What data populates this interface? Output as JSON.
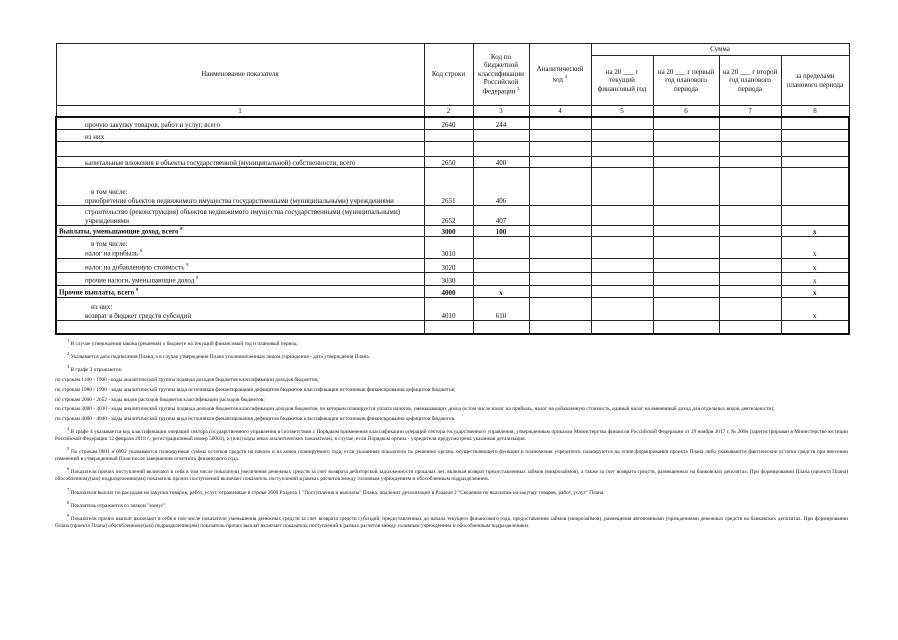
{
  "table": {
    "header": {
      "name": "Наименование показателя",
      "code": "Код строки",
      "kbk": "Код по бюджетной классификации Российской Федерации",
      "kbk_note": "3",
      "analytic": "Аналитический код",
      "analytic_note": "4",
      "sum": "Сумма",
      "current": "на 20 ___ г текущий финансовый год",
      "first": "на 20 ___ г первый год планового периода",
      "second": "на 20 ___ г второй год планового периода",
      "beyond": "за пределами планового периода"
    },
    "numbers": [
      "1",
      "2",
      "3",
      "4",
      "5",
      "6",
      "7",
      "8"
    ],
    "rows": [
      {
        "name": "прочую закупку товаров, работ и услуг, всего",
        "code": "2640",
        "kbk": "244"
      },
      {
        "name": "из них"
      },
      {
        "name": "капитальные вложения в объекты государственной (муниципальной) собственности, всего",
        "code": "2650",
        "kbk": "400"
      },
      {
        "lead": "в том числе:",
        "name": "приобретение объектов недвижимого имущества государственными (муниципальными) учреждениями",
        "code": "2651",
        "kbk": "406"
      },
      {
        "name": "строительство (реконструкция) объектов недвижимого имущества государственными (муниципальными) учреждениями",
        "code": "2652",
        "kbk": "407"
      },
      {
        "name": "Выплаты, уменьшающие доход, всего",
        "note": "8",
        "code": "3000",
        "kbk": "100",
        "beyond": "x",
        "bold": true
      },
      {
        "lead": "в том числе:",
        "name": "налог на прибыль",
        "note": "8",
        "code": "3010",
        "beyond": "x"
      },
      {
        "name": "налог на добавленную стоимость",
        "note": "8",
        "code": "3020",
        "beyond": "x"
      },
      {
        "name": "прочие налоги, уменьшающие доход",
        "note": "8",
        "code": "3030",
        "beyond": "x"
      },
      {
        "name": "Прочие выплаты, всего",
        "note": "9",
        "code": "4000",
        "kbk": "x",
        "beyond": "x",
        "bold": true
      },
      {
        "lead": "из них:",
        "name": "возврат в бюджет средств субсидий",
        "code": "4010",
        "kbk": "610",
        "beyond": "x"
      }
    ]
  },
  "footnotes": [
    {
      "mark": "1",
      "text": "В случае утверждения закона (решения) о бюджете на текущий финансовый год и плановый период."
    },
    {
      "mark": "2",
      "text": "Указывается дата подписания Плана, а в случае утверждения Плана уполномоченным лицом учреждения - дата утверждения Плана."
    },
    {
      "mark": "3",
      "text": "В графе 3 отражаются:",
      "lines": [
        "по строкам 1100 - 1900 - коды аналитической группы подвида доходов бюджетов классификации доходов бюджетов;",
        "по строкам 1980 - 1990 - коды аналитической группы вида источников финансирования дефицитов бюджетов классификации источников финансирования дефицитов бюджетов;",
        "по строкам 2000 - 2652 - коды видов расходов бюджетов классификации расходов бюджетов;",
        "по строкам 3000 - 3030 - коды аналитической группы подвида доходов бюджетов классификации доходов бюджетов, по которым планируется уплата налогов, уменьшающих доход (в том числе налог на прибыль, налог на добавленную стоимость, единый налог на вмененный доход для отдельных видов деятельности);",
        "по строкам 4000 - 4040 - коды аналитической группы вида источников финансирования дефицитов бюджетов классификации источников финансирования дефицитов бюджетов."
      ]
    },
    {
      "mark": "4",
      "text": "В графе 4 указывается код классификации операций сектора государственного управления в соответствии с Порядком применения классификации операций сектора государственного управления, утвержденным приказом Министерства финансов Российской Федерации от 29 ноября 2017 г. № 209н (зарегистрирован в Министерстве юстиции Российской Федерации 12 февраля 2018 г., регистрационный номер 50003), и (или) коды иных аналитических показателей, в случае, если Порядком органа - учредителя предусмотрена указанная детализация."
    },
    {
      "mark": "5",
      "text": "По строкам 0001 и 0002 указываются планируемые суммы остатков средств на начало и на конец планируемого года, если указанные показатели по решению органа, осуществляющего функции и полномочия учредителя, планируются на этапе формирования проекта Плана либо указываются фактические остатки средств при внесении изменений в утвержденный План после завершения отчетного финансового года."
    },
    {
      "mark": "6",
      "text": "Показатели прочих поступлений включают в себя в том числе показатели увеличения денежных средств за счет возврата дебиторской задолженности прошлых лет, включая возврат предоставленных займов (микрозаймов), а также за счет возврата средств, размещенных на банковских депозитах. При формировании Плана (проекта Плана) обособленному(ым) подразделению(ям) показатель прочих поступлений включает показатель поступлений в рамках расчетов между головным учреждением и обособленным подразделением."
    },
    {
      "mark": "7",
      "text": "Показатели выплат по расходам на закупки товаров, работ, услуг, отраженные в строке 2600 Раздела 1 \"Поступления и выплаты\" Плана, подлежат детализации в Разделе 2 \"Сведения по выплатам на закупку товаров, работ, услуг\" Плана."
    },
    {
      "mark": "8",
      "text": "Показатель отражается со знаком \"минус\""
    },
    {
      "mark": "9",
      "text": "Показатели прочих выплат включают в себя в том числе показатели уменьшения денежных средств за счет возврата средств субсидий, предоставленных до начала текущего финансового года, предоставления займов (микрозаймов), размещения автономными учреждениями денежных средств на банковских депозитах. При формировании Плана (проекта Плана) обособленному(ым) подразделению(ям) показатель прочих выплат включает показатель поступлений в рамках расчетов между головным учреждением и обособленным подразделением."
    }
  ]
}
